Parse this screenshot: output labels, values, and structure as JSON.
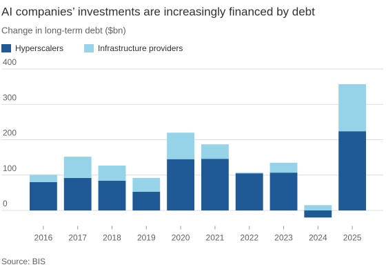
{
  "chart_data": {
    "type": "stacked_bar",
    "title": "AI companies’ investments are increasingly financed by debt",
    "subtitle": "Change in long-term debt ($bn)",
    "source": "Source: BIS",
    "categories": [
      "2016",
      "2017",
      "2018",
      "2019",
      "2020",
      "2021",
      "2022",
      "2023",
      "2024",
      "2025"
    ],
    "series": [
      {
        "name": "Hyperscalers",
        "color": "#1f5a96",
        "values": [
          80,
          92,
          84,
          53,
          145,
          146,
          105,
          107,
          -20,
          224
        ]
      },
      {
        "name": "Infrastructure providers",
        "color": "#96d3e8",
        "values": [
          21,
          60,
          43,
          39,
          75,
          41,
          2,
          28,
          15,
          133
        ]
      }
    ],
    "ylim": [
      -40,
      400
    ],
    "yticks": [
      0,
      100,
      200,
      300,
      400
    ],
    "grid": true
  }
}
